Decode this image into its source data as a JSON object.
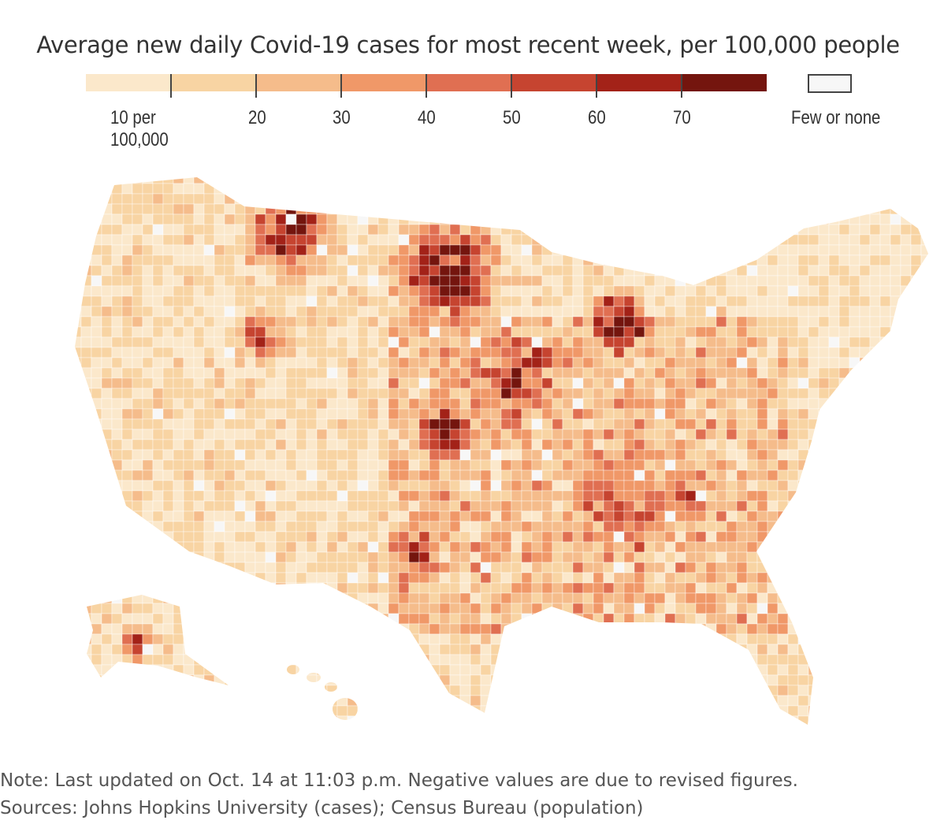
{
  "title": "Average new daily Covid-19 cases for most recent week, per 100,000 people",
  "legend": {
    "bins": [
      {
        "label": "",
        "color": "#fbe8cb"
      },
      {
        "label": "10 per 100,000",
        "color": "#f8d4a3"
      },
      {
        "label": "20",
        "color": "#f5bc8b"
      },
      {
        "label": "30",
        "color": "#f09868"
      },
      {
        "label": "40",
        "color": "#e06f52"
      },
      {
        "label": "50",
        "color": "#c64430"
      },
      {
        "label": "60",
        "color": "#a32218"
      },
      {
        "label": "70",
        "color": "#74150e"
      }
    ],
    "few_or_none_label": "Few or none",
    "few_or_none_color": "#f7f7f7"
  },
  "note": "Note: Last updated on Oct. 14 at 11:03 p.m. Negative values are due to revised figures.",
  "sources": "Sources: Johns Hopkins University (cases); Census Bureau (population)"
}
